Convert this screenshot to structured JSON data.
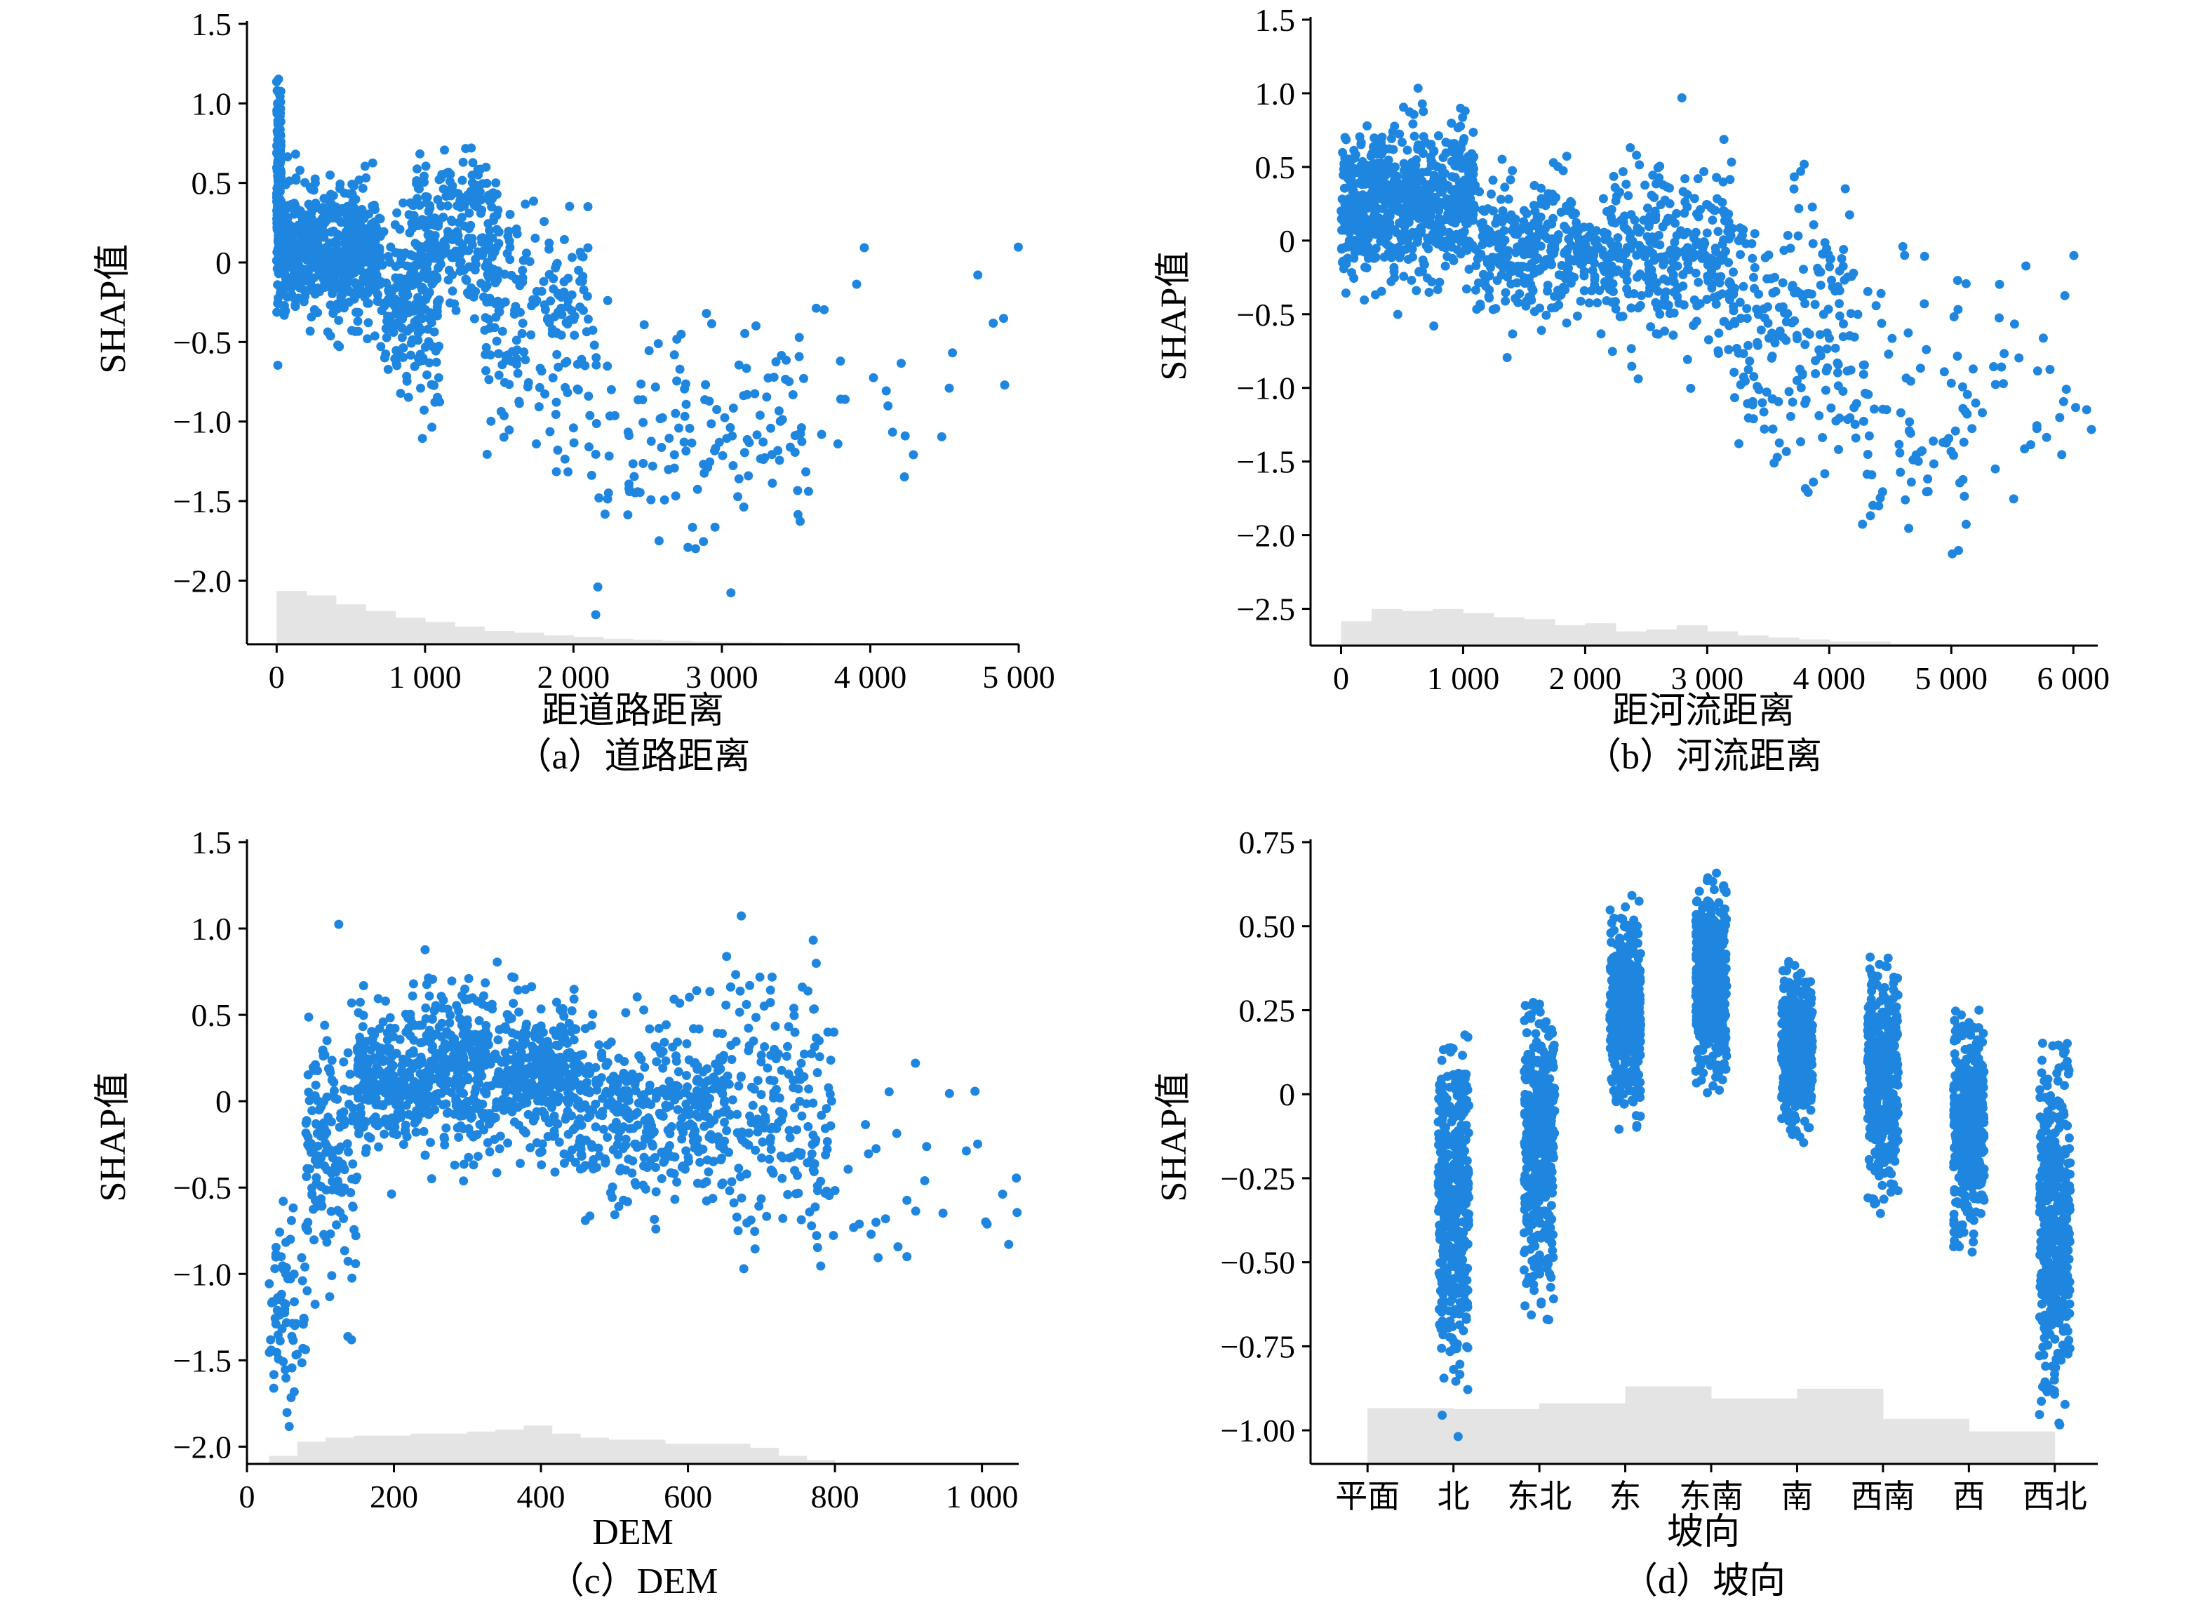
{
  "colors": {
    "point": "#1f86e0",
    "hist": "#e4e4e4",
    "axis": "#000000"
  },
  "chart_data": [
    {
      "type": "scatter",
      "panel": "a",
      "caption": "（a）道路距离",
      "xlabel": "距道路距离",
      "ylabel": "SHAP值",
      "xlim": [
        -200,
        5000
      ],
      "ylim": [
        -2.4,
        1.5
      ],
      "xticks": [
        0,
        1000,
        2000,
        3000,
        4000,
        5000
      ],
      "xtick_labels": [
        "0",
        "1 000",
        "2 000",
        "3 000",
        "4 000",
        "5 000"
      ],
      "yticks": [
        1.5,
        1.0,
        0.5,
        0,
        -0.5,
        -1.0,
        -1.5,
        -2.0
      ],
      "ytick_labels": [
        "1.5",
        "1.0",
        "0.5",
        "0",
        "−0.5",
        "−1.0",
        "−1.5",
        "−2.0"
      ],
      "clusters": [
        {
          "x": [
            0,
            30
          ],
          "mean": 0.5,
          "sd": 0.3,
          "n": 180
        },
        {
          "x": [
            0,
            700
          ],
          "mean": 0.05,
          "sd": 0.2,
          "n": 600
        },
        {
          "x": [
            700,
            1100
          ],
          "mean": -0.25,
          "sd": 0.3,
          "n": 200
        },
        {
          "x": [
            900,
            1500
          ],
          "mean": 0.15,
          "sd": 0.25,
          "n": 250
        },
        {
          "x": [
            1400,
            2100
          ],
          "mean": -0.4,
          "sd": 0.35,
          "n": 180
        },
        {
          "x": [
            2100,
            3600
          ],
          "mean": -1.05,
          "sd": 0.35,
          "n": 150
        },
        {
          "x": [
            3600,
            5000
          ],
          "mean": -0.8,
          "sd": 0.45,
          "n": 25
        }
      ],
      "hist": [
        0.12,
        0.11,
        0.09,
        0.075,
        0.06,
        0.05,
        0.04,
        0.03,
        0.026,
        0.02,
        0.016,
        0.012,
        0.01,
        0.008,
        0.006,
        0.005,
        0.004,
        0.003,
        0.002,
        0.002
      ]
    },
    {
      "type": "scatter",
      "panel": "b",
      "caption": "（b）河流距离",
      "xlabel": "距河流距离",
      "ylabel": "SHAP值",
      "xlim": [
        -250,
        6200
      ],
      "ylim": [
        -2.75,
        1.5
      ],
      "xticks": [
        0,
        1000,
        2000,
        3000,
        4000,
        5000,
        6000
      ],
      "xtick_labels": [
        "0",
        "1 000",
        "2 000",
        "3 000",
        "4 000",
        "5 000",
        "6 000"
      ],
      "yticks": [
        1.5,
        1.0,
        0.5,
        0,
        -0.5,
        -1.0,
        -1.5,
        -2.0,
        -2.5
      ],
      "ytick_labels": [
        "1.5",
        "1.0",
        "0.5",
        "0",
        "−0.5",
        "−1.0",
        "−1.5",
        "−2.0",
        "−2.5"
      ],
      "clusters": [
        {
          "x": [
            0,
            1100
          ],
          "mean": 0.25,
          "sd": 0.25,
          "n": 700
        },
        {
          "x": [
            1100,
            2200
          ],
          "mean": -0.05,
          "sd": 0.22,
          "n": 350
        },
        {
          "x": [
            2200,
            3200
          ],
          "mean": -0.1,
          "sd": 0.3,
          "n": 300
        },
        {
          "x": [
            3200,
            4200
          ],
          "mean": -0.6,
          "sd": 0.45,
          "n": 200
        },
        {
          "x": [
            4200,
            5200
          ],
          "mean": -1.2,
          "sd": 0.5,
          "n": 90
        },
        {
          "x": [
            5200,
            6200
          ],
          "mean": -1.0,
          "sd": 0.4,
          "n": 30
        }
      ],
      "hist": [
        0.06,
        0.09,
        0.085,
        0.09,
        0.08,
        0.07,
        0.065,
        0.05,
        0.055,
        0.035,
        0.04,
        0.05,
        0.035,
        0.025,
        0.02,
        0.015,
        0.01,
        0.01,
        0.005,
        0.005
      ]
    },
    {
      "type": "scatter",
      "panel": "c",
      "caption": "（c）DEM",
      "xlabel": "DEM",
      "ylabel": "SHAP值",
      "xlim": [
        0,
        1050
      ],
      "ylim": [
        -2.1,
        1.5
      ],
      "xticks": [
        0,
        200,
        400,
        600,
        800,
        1000
      ],
      "xtick_labels": [
        "0",
        "200",
        "400",
        "600",
        "800",
        "1 000"
      ],
      "yticks": [
        1.5,
        1.0,
        0.5,
        0,
        -0.5,
        -1.0,
        -1.5,
        -2.0
      ],
      "ytick_labels": [
        "1.5",
        "1.0",
        "0.5",
        "0",
        "−0.5",
        "−1.0",
        "−1.5",
        "−2.0"
      ],
      "clusters": [
        {
          "x": [
            30,
            80
          ],
          "mean": -1.2,
          "sd": 0.35,
          "n": 70
        },
        {
          "x": [
            80,
            150
          ],
          "mean": -0.3,
          "sd": 0.35,
          "n": 160
        },
        {
          "x": [
            150,
            450
          ],
          "mean": 0.15,
          "sd": 0.22,
          "n": 900
        },
        {
          "x": [
            450,
            650
          ],
          "mean": -0.05,
          "sd": 0.25,
          "n": 400
        },
        {
          "x": [
            650,
            800
          ],
          "mean": -0.05,
          "sd": 0.4,
          "n": 200
        },
        {
          "x": [
            800,
            1050
          ],
          "mean": -0.45,
          "sd": 0.3,
          "n": 30
        }
      ],
      "hist": [
        0.02,
        0.055,
        0.065,
        0.07,
        0.07,
        0.075,
        0.075,
        0.08,
        0.085,
        0.095,
        0.075,
        0.065,
        0.06,
        0.06,
        0.05,
        0.05,
        0.05,
        0.04,
        0.02,
        0.01
      ]
    },
    {
      "type": "strip",
      "panel": "d",
      "caption": "（d）坡向",
      "xlabel": "坡向",
      "ylabel": "SHAP值",
      "categories": [
        "平面",
        "北",
        "东北",
        "东",
        "东南",
        "南",
        "西南",
        "西",
        "西北"
      ],
      "ylim": [
        -1.1,
        0.75
      ],
      "yticks": [
        0.75,
        0.5,
        0.25,
        0,
        -0.25,
        -0.5,
        -0.75,
        -1.0
      ],
      "ytick_labels": [
        "0.75",
        "0.50",
        "0.25",
        "0",
        "−0.25",
        "−0.50",
        "−0.75",
        "−1.00"
      ],
      "strips": [
        {
          "category": "北",
          "min": -1.02,
          "max": 0.18,
          "mean": -0.32
        },
        {
          "category": "东北",
          "min": -0.7,
          "max": 0.28,
          "mean": -0.15
        },
        {
          "category": "东",
          "min": -0.13,
          "max": 0.6,
          "mean": 0.25
        },
        {
          "category": "东南",
          "min": 0.0,
          "max": 0.66,
          "mean": 0.33
        },
        {
          "category": "南",
          "min": -0.15,
          "max": 0.4,
          "mean": 0.14
        },
        {
          "category": "西南",
          "min": -0.36,
          "max": 0.43,
          "mean": 0.05
        },
        {
          "category": "西",
          "min": -0.47,
          "max": 0.28,
          "mean": -0.1
        },
        {
          "category": "西北",
          "min": -1.02,
          "max": 0.16,
          "mean": -0.38
        }
      ],
      "hist": [
        0.115,
        0.113,
        0.125,
        0.16,
        0.135,
        0.155,
        0.093,
        0.067
      ]
    }
  ]
}
